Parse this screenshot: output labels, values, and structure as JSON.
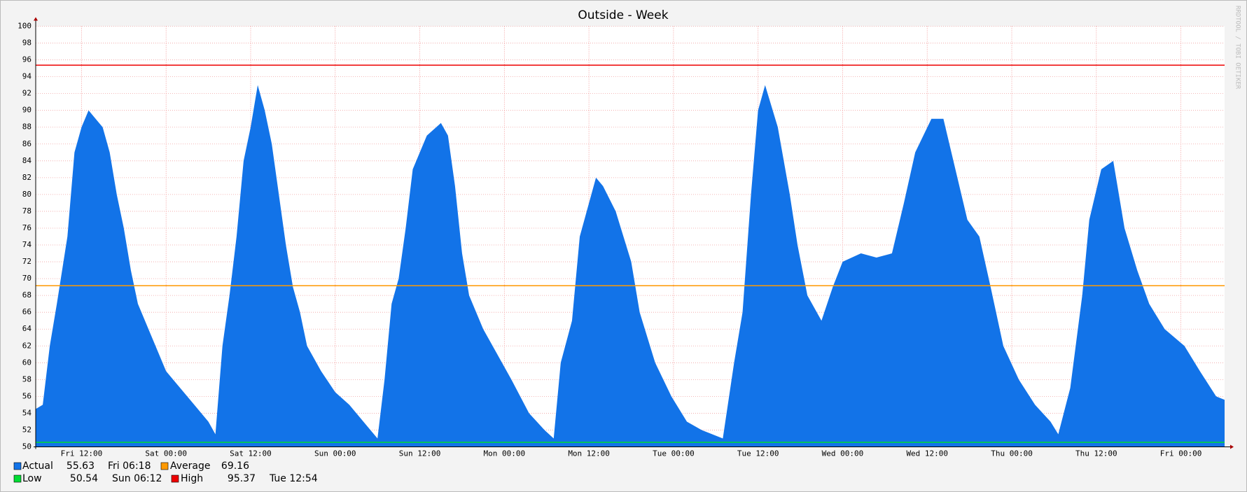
{
  "chart_data": {
    "type": "area",
    "title": "Outside - Week",
    "watermark": "RRDTOOL / TOBI OETIKER",
    "xlim": [
      5.5,
      174.2
    ],
    "xticks": [
      {
        "value": 12,
        "label": "Fri 12:00"
      },
      {
        "value": 24,
        "label": "Sat 00:00"
      },
      {
        "value": 36,
        "label": "Sat 12:00"
      },
      {
        "value": 48,
        "label": "Sun 00:00"
      },
      {
        "value": 60,
        "label": "Sun 12:00"
      },
      {
        "value": 72,
        "label": "Mon 00:00"
      },
      {
        "value": 84,
        "label": "Mon 12:00"
      },
      {
        "value": 96,
        "label": "Tue 00:00"
      },
      {
        "value": 108,
        "label": "Tue 12:00"
      },
      {
        "value": 120,
        "label": "Wed 00:00"
      },
      {
        "value": 132,
        "label": "Wed 12:00"
      },
      {
        "value": 144,
        "label": "Thu 00:00"
      },
      {
        "value": 156,
        "label": "Thu 12:00"
      },
      {
        "value": 168,
        "label": "Fri 00:00"
      }
    ],
    "ylim": [
      50,
      100
    ],
    "yticks": [
      50,
      52,
      54,
      56,
      58,
      60,
      62,
      64,
      66,
      68,
      70,
      72,
      74,
      76,
      78,
      80,
      82,
      84,
      86,
      88,
      90,
      92,
      94,
      96,
      98,
      100
    ],
    "grid": true,
    "x": [
      5.5,
      6.5,
      7.5,
      8.5,
      10,
      11,
      12,
      13,
      14,
      15,
      16,
      17,
      18,
      19,
      20,
      22,
      24,
      26,
      28,
      30,
      31,
      32,
      33,
      34,
      35,
      36,
      37,
      38,
      39,
      40,
      41,
      42,
      43,
      44,
      46,
      48,
      50,
      52,
      54,
      55,
      56,
      57,
      58,
      59,
      61,
      63,
      64,
      65,
      66,
      67,
      69,
      71,
      73,
      75.5,
      77.7,
      79,
      80,
      81.6,
      82.7,
      85,
      86,
      87.8,
      90,
      91.2,
      93.4,
      95.7,
      97.9,
      100,
      103,
      104.6,
      105.8,
      107,
      108,
      109,
      110.8,
      112.5,
      113.6,
      115,
      117,
      118.6,
      120,
      122.6,
      124.8,
      127,
      128.7,
      130.3,
      132.6,
      134.3,
      136,
      137.7,
      139.4,
      141,
      142.8,
      145,
      147.3,
      149.5,
      150.6,
      152.3,
      154,
      155,
      156.7,
      158.4,
      160,
      161.8,
      163.5,
      165.7,
      168.5,
      170.7,
      173,
      174.2
    ],
    "series": [
      {
        "name": "Actual",
        "color": "#1273e8",
        "values": [
          54.5,
          55,
          62,
          67,
          75,
          85,
          88,
          90,
          89,
          88,
          85,
          80,
          76,
          71,
          67,
          63,
          59,
          57,
          55,
          53,
          51.5,
          62,
          68,
          75,
          84,
          88,
          93,
          90,
          86,
          80,
          74,
          69,
          66,
          62,
          59,
          56.5,
          55,
          53,
          51,
          58,
          67,
          70,
          76,
          83,
          87,
          88.5,
          87,
          81,
          73,
          68,
          64,
          61,
          58,
          54,
          52,
          51,
          60,
          65,
          75,
          82,
          81,
          78,
          72,
          66,
          60,
          56,
          53,
          52,
          51,
          60,
          66,
          80,
          90,
          93,
          88,
          80,
          74,
          68,
          65,
          69,
          72,
          73,
          72.5,
          73,
          79,
          85,
          89,
          89,
          83,
          77,
          75,
          69,
          62,
          58,
          55,
          53,
          51.5,
          57,
          68,
          77,
          83,
          84,
          76,
          71,
          67,
          64,
          62,
          59,
          56,
          55.6
        ],
        "last": 55.63,
        "last_time": "Fri 06:18"
      }
    ],
    "lines": [
      {
        "name": "Average",
        "color": "#ff9900",
        "value": 69.16
      },
      {
        "name": "Low",
        "color": "#00dd33",
        "value": 50.54,
        "time": "Sun 06:12"
      },
      {
        "name": "High",
        "color": "#ee0000",
        "value": 95.37,
        "time": "Tue 12:54"
      }
    ]
  }
}
